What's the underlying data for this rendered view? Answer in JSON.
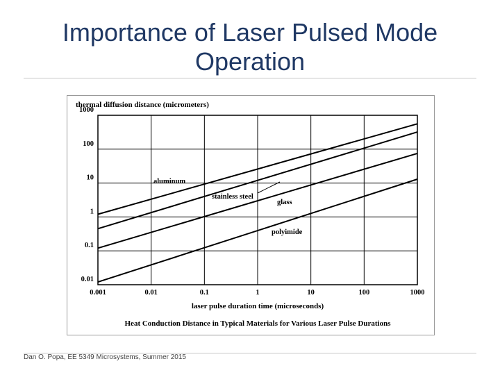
{
  "slide": {
    "title_line1": "Importance of Laser Pulsed Mode",
    "title_line2": "Operation",
    "footer": "Dan O. Popa, EE 5349 Microsystems, Summer 2015",
    "title_color": "#1f3864"
  },
  "chart_data": {
    "type": "line",
    "title": "Heat Conduction Distance in Typical Materials for Various Laser Pulse Durations",
    "xlabel": "laser pulse duration time (microseconds)",
    "ylabel": "thermal diffusion distance (micrometers)",
    "x_scale": "log",
    "y_scale": "log",
    "xlim": [
      0.001,
      1000
    ],
    "ylim": [
      0.01,
      1000
    ],
    "x_ticks": [
      "0.001",
      "0.01",
      "0.1",
      "1",
      "10",
      "100",
      "1000"
    ],
    "y_ticks": [
      "0.01",
      "0.1",
      "1",
      "10",
      "100",
      "1000"
    ],
    "grid": true,
    "series": [
      {
        "name": "aluminum",
        "x": [
          0.001,
          1000
        ],
        "y": [
          1.2,
          560
        ]
      },
      {
        "name": "stainless steel",
        "x": [
          0.001,
          1000
        ],
        "y": [
          0.45,
          320
        ]
      },
      {
        "name": "glass",
        "x": [
          0.001,
          1000
        ],
        "y": [
          0.12,
          75
        ]
      },
      {
        "name": "polyimide",
        "x": [
          0.001,
          1000
        ],
        "y": [
          0.012,
          13
        ]
      }
    ],
    "annotations": [
      "aluminum",
      "stainless steel",
      "glass",
      "polyimide"
    ]
  }
}
